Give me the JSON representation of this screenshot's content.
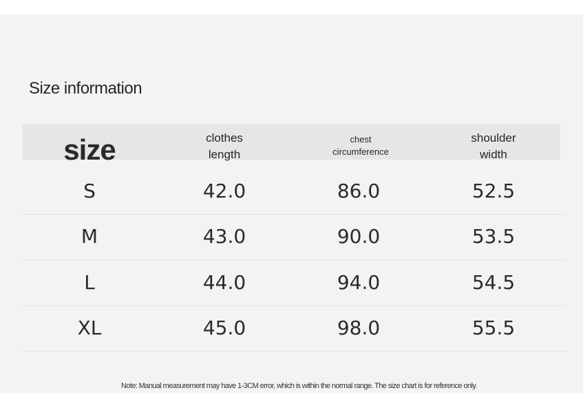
{
  "title": "Size information",
  "columns": {
    "size": "size",
    "clothes_length": [
      "clothes",
      "length"
    ],
    "chest": [
      "chest",
      "circumference"
    ],
    "shoulder": [
      "shoulder",
      "width"
    ]
  },
  "rows": [
    {
      "size": "S",
      "length": "42.0",
      "chest": "86.0",
      "shoulder": "52.5"
    },
    {
      "size": "M",
      "length": "43.0",
      "chest": "90.0",
      "shoulder": "53.5"
    },
    {
      "size": "L",
      "length": "44.0",
      "chest": "94.0",
      "shoulder": "54.5"
    },
    {
      "size": "XL",
      "length": "45.0",
      "chest": "98.0",
      "shoulder": "55.5"
    }
  ],
  "note": "Note: Manual measurement may have 1-3CM error, which is within the normal range. The size chart is for reference only."
}
